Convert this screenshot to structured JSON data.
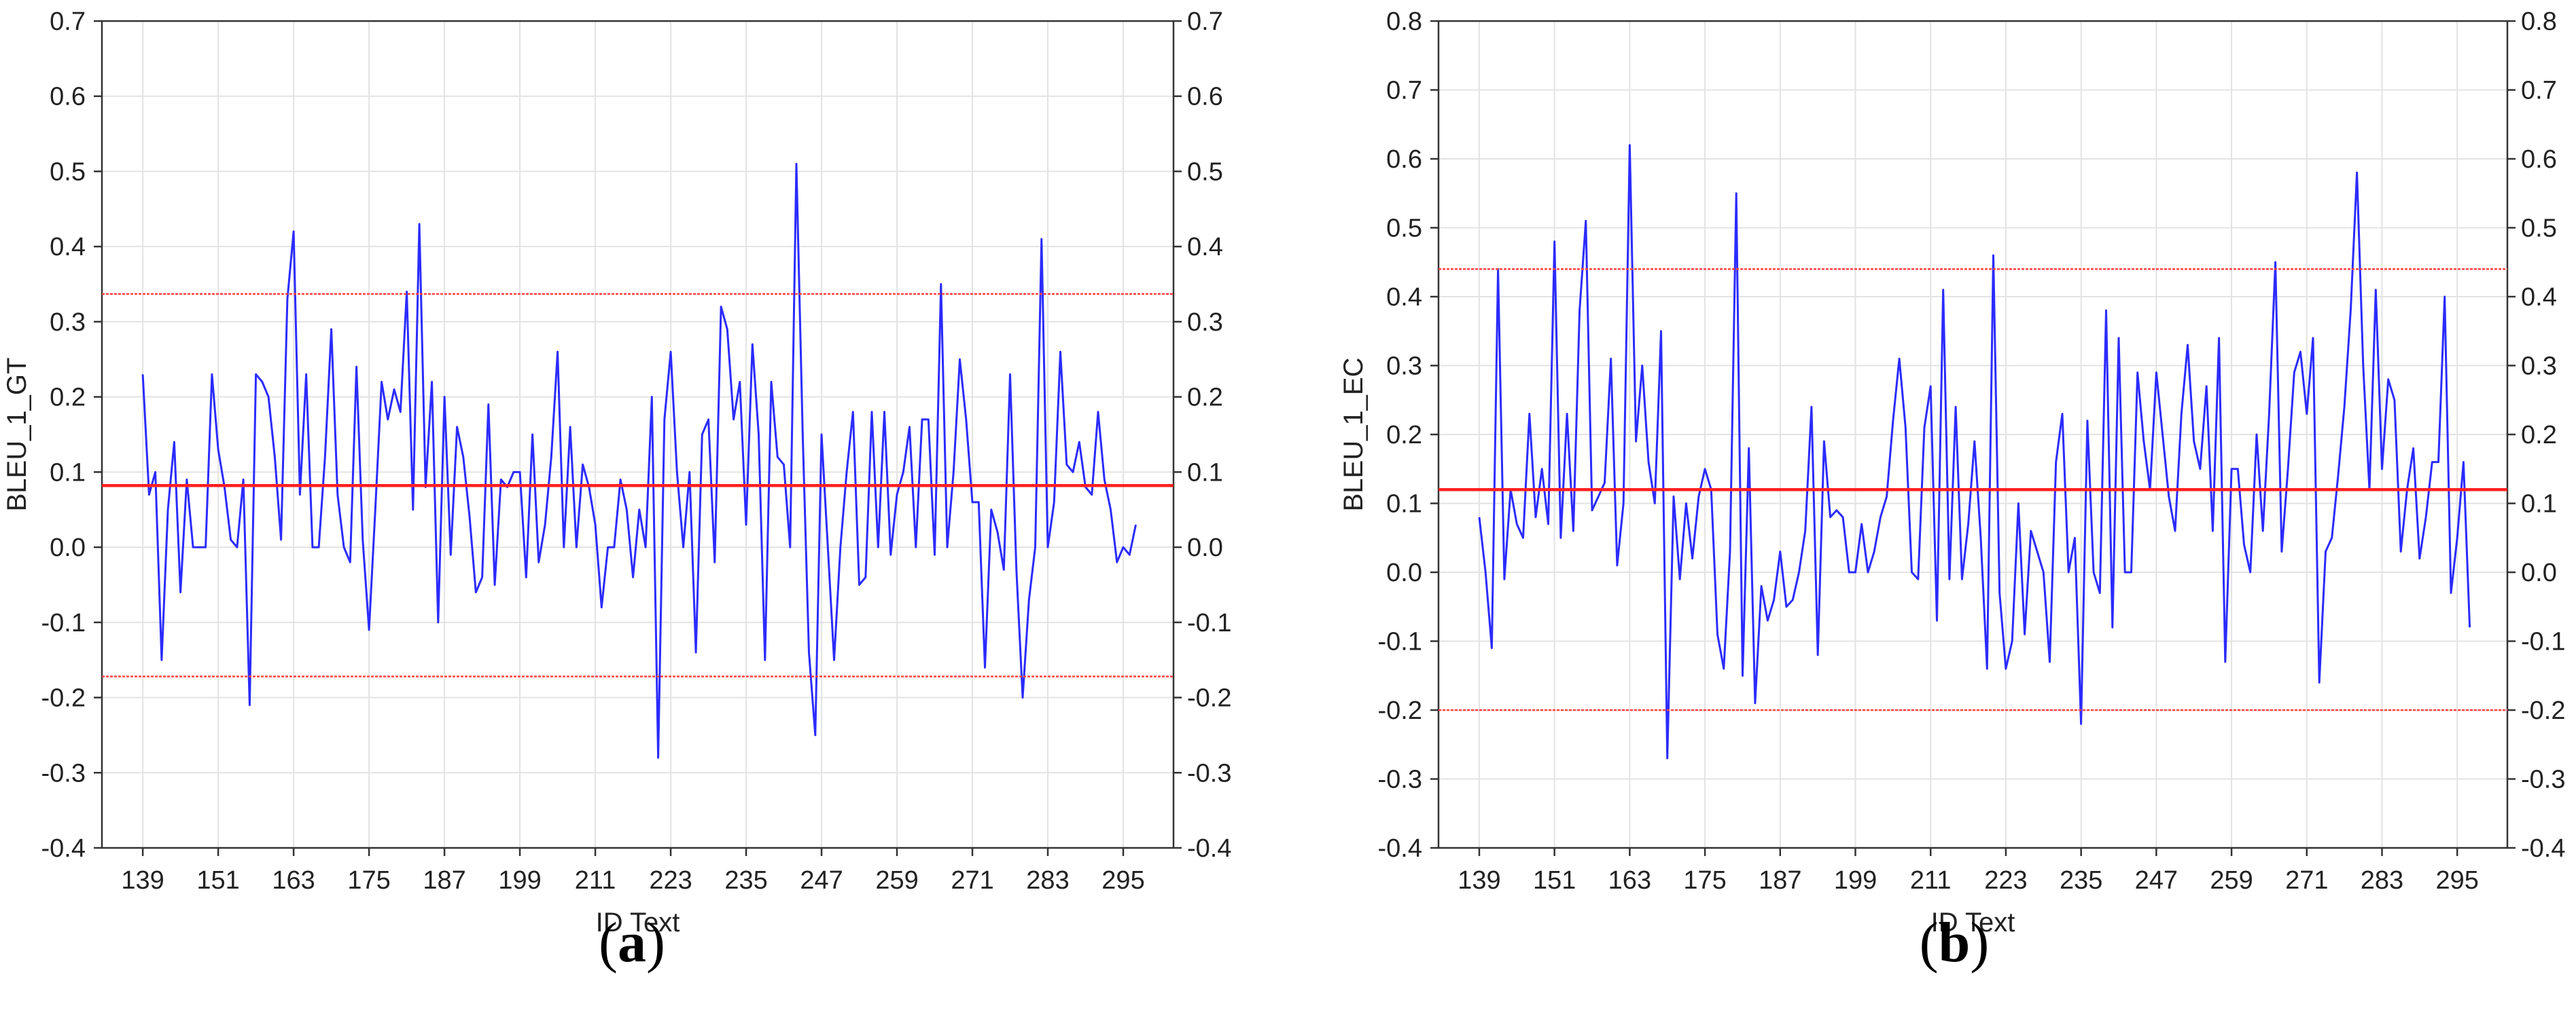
{
  "chart_data": [
    {
      "type": "line",
      "caption": "a",
      "xlabel": "ID Text",
      "ylabel": "BLEU_1_GT",
      "ylim": [
        -0.4,
        0.7
      ],
      "yticks": [
        "-0.4",
        "-0.3",
        "-0.2",
        "-0.1",
        "0.0",
        "0.1",
        "0.2",
        "0.3",
        "0.4",
        "0.5",
        "0.6",
        "0.7"
      ],
      "xlim": [
        132.5,
        303
      ],
      "xticks": [
        "139",
        "151",
        "163",
        "175",
        "187",
        "199",
        "211",
        "223",
        "235",
        "247",
        "259",
        "271",
        "283",
        "295"
      ],
      "grid": true,
      "hlines": [
        {
          "kind": "mean",
          "value": 0.082,
          "color": "#ff2020"
        },
        {
          "kind": "limit",
          "value": 0.337,
          "color": "#ff4040"
        },
        {
          "kind": "limit",
          "value": -0.172,
          "color": "#ff4040"
        }
      ],
      "series": [
        {
          "color": "#2b2bff",
          "x_start": 139,
          "values": [
            0.23,
            0.07,
            0.1,
            -0.15,
            0.05,
            0.14,
            -0.06,
            0.09,
            0.0,
            0.0,
            0.0,
            0.23,
            0.13,
            0.08,
            0.01,
            0.0,
            0.09,
            -0.21,
            0.23,
            0.22,
            0.2,
            0.12,
            0.01,
            0.33,
            0.42,
            0.07,
            0.23,
            0.0,
            0.0,
            0.12,
            0.29,
            0.07,
            0.0,
            -0.02,
            0.24,
            0.01,
            -0.11,
            0.05,
            0.22,
            0.17,
            0.21,
            0.18,
            0.34,
            0.05,
            0.43,
            0.08,
            0.22,
            -0.1,
            0.2,
            -0.01,
            0.16,
            0.12,
            0.04,
            -0.06,
            -0.04,
            0.19,
            -0.05,
            0.09,
            0.08,
            0.1,
            0.1,
            -0.04,
            0.15,
            -0.02,
            0.03,
            0.12,
            0.26,
            0.0,
            0.16,
            0.0,
            0.11,
            0.08,
            0.03,
            -0.08,
            0.0,
            0.0,
            0.09,
            0.05,
            -0.04,
            0.05,
            0.0,
            0.2,
            -0.28,
            0.17,
            0.26,
            0.1,
            0.0,
            0.1,
            -0.14,
            0.15,
            0.17,
            -0.02,
            0.32,
            0.29,
            0.17,
            0.22,
            0.03,
            0.27,
            0.15,
            -0.15,
            0.22,
            0.12,
            0.11,
            0.0,
            0.51,
            0.15,
            -0.14,
            -0.25,
            0.15,
            0.0,
            -0.15,
            0.0,
            0.1,
            0.18,
            -0.05,
            -0.04,
            0.18,
            0.0,
            0.18,
            -0.01,
            0.07,
            0.1,
            0.16,
            0.0,
            0.17,
            0.17,
            -0.01,
            0.35,
            0.0,
            0.1,
            0.25,
            0.17,
            0.06,
            0.06,
            -0.16,
            0.05,
            0.02,
            -0.03,
            0.23,
            -0.03,
            -0.2,
            -0.07,
            0.0,
            0.41,
            0.0,
            0.06,
            0.26,
            0.11,
            0.1,
            0.14,
            0.08,
            0.07,
            0.18,
            0.09,
            0.05,
            -0.02,
            0.0,
            -0.01,
            0.03
          ]
        }
      ]
    },
    {
      "type": "line",
      "caption": "b",
      "xlabel": "ID Text",
      "ylabel": "BLEU_1_EC",
      "ylim": [
        -0.4,
        0.8
      ],
      "yticks": [
        "-0.4",
        "-0.3",
        "-0.2",
        "-0.1",
        "0.0",
        "0.1",
        "0.2",
        "0.3",
        "0.4",
        "0.5",
        "0.6",
        "0.7",
        "0.8"
      ],
      "xlim": [
        132.5,
        303
      ],
      "xticks": [
        "139",
        "151",
        "163",
        "175",
        "187",
        "199",
        "211",
        "223",
        "235",
        "247",
        "259",
        "271",
        "283",
        "295"
      ],
      "grid": true,
      "hlines": [
        {
          "kind": "mean",
          "value": 0.12,
          "color": "#ff2020"
        },
        {
          "kind": "limit",
          "value": 0.44,
          "color": "#ff4040"
        },
        {
          "kind": "limit",
          "value": -0.2,
          "color": "#ff4040"
        }
      ],
      "series": [
        {
          "color": "#2b2bff",
          "x_start": 139,
          "values": [
            0.08,
            0.0,
            -0.11,
            0.44,
            -0.01,
            0.12,
            0.07,
            0.05,
            0.23,
            0.08,
            0.15,
            0.07,
            0.48,
            0.05,
            0.23,
            0.06,
            0.38,
            0.51,
            0.09,
            0.11,
            0.13,
            0.31,
            0.01,
            0.1,
            0.62,
            0.19,
            0.3,
            0.16,
            0.1,
            0.35,
            -0.27,
            0.11,
            -0.01,
            0.1,
            0.02,
            0.11,
            0.15,
            0.12,
            -0.09,
            -0.14,
            0.03,
            0.55,
            -0.15,
            0.18,
            -0.19,
            -0.02,
            -0.07,
            -0.04,
            0.03,
            -0.05,
            -0.04,
            0.0,
            0.06,
            0.24,
            -0.12,
            0.19,
            0.08,
            0.09,
            0.08,
            0.0,
            0.0,
            0.07,
            0.0,
            0.03,
            0.08,
            0.11,
            0.22,
            0.31,
            0.21,
            0.0,
            -0.01,
            0.21,
            0.27,
            -0.07,
            0.41,
            -0.01,
            0.24,
            -0.01,
            0.07,
            0.19,
            0.05,
            -0.14,
            0.46,
            -0.03,
            -0.14,
            -0.1,
            0.1,
            -0.09,
            0.06,
            0.03,
            0.0,
            -0.13,
            0.16,
            0.23,
            0.0,
            0.05,
            -0.22,
            0.22,
            0.0,
            -0.03,
            0.38,
            -0.08,
            0.34,
            0.0,
            0.0,
            0.29,
            0.19,
            0.12,
            0.29,
            0.2,
            0.11,
            0.06,
            0.23,
            0.33,
            0.19,
            0.15,
            0.27,
            0.06,
            0.34,
            -0.13,
            0.15,
            0.15,
            0.04,
            0.0,
            0.2,
            0.06,
            0.23,
            0.45,
            0.03,
            0.15,
            0.29,
            0.32,
            0.23,
            0.34,
            -0.16,
            0.03,
            0.05,
            0.14,
            0.24,
            0.38,
            0.58,
            0.3,
            0.12,
            0.41,
            0.15,
            0.28,
            0.25,
            0.03,
            0.12,
            0.18,
            0.02,
            0.08,
            0.16,
            0.16,
            0.4,
            -0.03,
            0.05,
            0.16,
            -0.08
          ]
        }
      ]
    }
  ]
}
